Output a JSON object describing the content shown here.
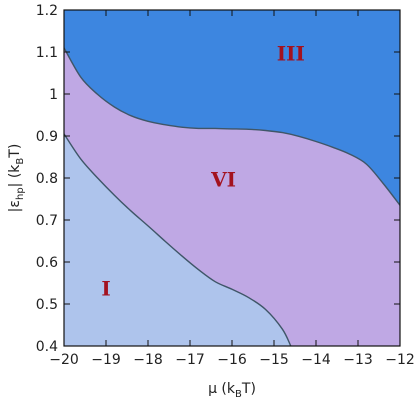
{
  "chart_data": {
    "type": "area",
    "title": "",
    "xlabel": {
      "main": "μ (k",
      "sub": "B",
      "tail": "T)"
    },
    "ylabel": {
      "main": "|ε",
      "sub": "hp",
      "mid": "| (k",
      "sub2": "B",
      "tail": "T)"
    },
    "xlim": [
      -20,
      -12
    ],
    "ylim": [
      0.4,
      1.2
    ],
    "x_ticks": [
      -20,
      -19,
      -18,
      -17,
      -16,
      -15,
      -14,
      -13,
      -12
    ],
    "x_tick_labels": [
      "−20",
      "−19",
      "−18",
      "−17",
      "−16",
      "−15",
      "−14",
      "−13",
      "−12"
    ],
    "y_ticks": [
      0.4,
      0.5,
      0.6,
      0.7,
      0.8,
      0.9,
      1.0,
      1.1,
      1.2
    ],
    "y_tick_labels": [
      "0.4",
      "0.5",
      "0.6",
      "0.7",
      "0.8",
      "0.9",
      "1",
      "1.1",
      "1.2"
    ],
    "grid": false,
    "colors": {
      "phase_I": "#aec4ec",
      "phase_VI": "#bfa8e4",
      "phase_III": "#3d86e0",
      "boundary": "#3f5668",
      "label": "#a3121f",
      "frame": "#111111"
    },
    "boundaries": [
      {
        "between": [
          "VI",
          "III"
        ],
        "x": [
          -20,
          -19.6,
          -19.2,
          -18.8,
          -18.4,
          -18.0,
          -17.6,
          -17.2,
          -16.8,
          -16.4,
          -16.0,
          -15.6,
          -15.2,
          -14.8,
          -14.4,
          -14.0,
          -13.6,
          -13.2,
          -12.8,
          -12.4,
          -12.0
        ],
        "y": [
          1.11,
          1.04,
          0.999,
          0.969,
          0.948,
          0.935,
          0.927,
          0.921,
          0.918,
          0.918,
          0.917,
          0.916,
          0.913,
          0.908,
          0.899,
          0.887,
          0.873,
          0.857,
          0.833,
          0.787,
          0.735
        ]
      },
      {
        "between": [
          "I",
          "VI"
        ],
        "x": [
          -20,
          -19.6,
          -19.2,
          -18.8,
          -18.4,
          -18.0,
          -17.6,
          -17.2,
          -16.8,
          -16.4,
          -16.0,
          -15.6,
          -15.2,
          -14.8,
          -14.6
        ],
        "y": [
          0.905,
          0.845,
          0.8,
          0.759,
          0.721,
          0.686,
          0.65,
          0.615,
          0.582,
          0.553,
          0.535,
          0.515,
          0.487,
          0.44,
          0.4
        ]
      }
    ],
    "regions": [
      {
        "name": "I",
        "label_x": -19.0,
        "label_y": 0.52
      },
      {
        "name": "VI",
        "label_x": -16.2,
        "label_y": 0.78
      },
      {
        "name": "III",
        "label_x": -14.6,
        "label_y": 1.08
      }
    ]
  }
}
